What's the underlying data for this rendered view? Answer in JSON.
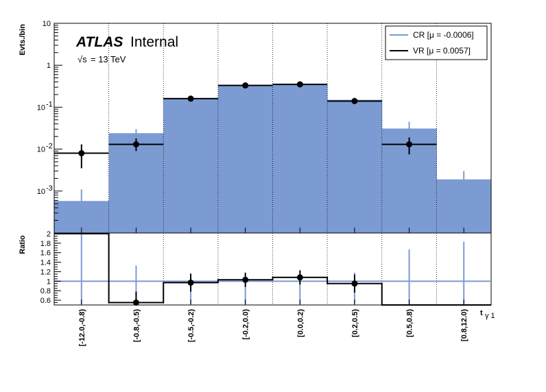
{
  "chart_data": [
    {
      "type": "bar",
      "panel": "main",
      "y_scale": "log",
      "ylim": [
        0.0001,
        10
      ],
      "ylabel": "Evts./bin",
      "y_ticks": [
        {
          "value": 10,
          "label": "10"
        },
        {
          "value": 1,
          "label": "1"
        },
        {
          "value": 0.1,
          "label": "10",
          "exp": "-1"
        },
        {
          "value": 0.01,
          "label": "10",
          "exp": "-2"
        },
        {
          "value": 0.001,
          "label": "10",
          "exp": "-3"
        }
      ],
      "categories": [
        "[-12.0,-0.8)",
        "[-0.8,-0.5)",
        "[-0.5,-0.2)",
        "[-0.2,0.0)",
        "[0.0,0.2)",
        "[0.2,0.5)",
        "[0.5,0.8)",
        "[0.8,12.0)"
      ],
      "xlabel": "t",
      "xlabel_sub": "γ 1",
      "series": [
        {
          "name": "CR [μ = -0.0006]",
          "style": "filled",
          "color": "#7b9bd2",
          "values": [
            0.00058,
            0.024,
            0.16,
            0.33,
            0.34,
            0.15,
            0.031,
            0.0019
          ],
          "err_low": [
            0.00015,
            0.012,
            0.14,
            0.3,
            0.31,
            0.13,
            0.022,
            0.0012
          ],
          "err_high": [
            0.0011,
            0.03,
            0.18,
            0.36,
            0.37,
            0.17,
            0.045,
            0.003
          ]
        },
        {
          "name": "VR [μ = 0.0057]",
          "style": "step-markers",
          "color": "#000000",
          "values": [
            0.008,
            0.013,
            0.16,
            0.33,
            0.35,
            0.14,
            0.013,
            null
          ],
          "err_low": [
            0.0035,
            0.009,
            0.14,
            0.3,
            0.32,
            0.125,
            0.0075,
            null
          ],
          "err_high": [
            0.013,
            0.018,
            0.17,
            0.35,
            0.37,
            0.15,
            0.019,
            null
          ]
        }
      ],
      "annotations": {
        "atlas": "ATLAS",
        "status": "Internal",
        "energy_sqrt": "√s",
        "energy": "= 13 TeV"
      },
      "legend": "top-right"
    },
    {
      "type": "line",
      "panel": "ratio",
      "ylabel": "Ratio",
      "ylim": [
        0.5,
        2.0
      ],
      "y_ticks": [
        "2",
        "1.8",
        "1.6",
        "1.4",
        "1.2",
        "1",
        "0.8",
        "0.6"
      ],
      "reference_line": 1,
      "ratio_values": [
        2.0,
        0.55,
        0.97,
        1.03,
        1.08,
        0.95,
        0.0,
        0.0
      ],
      "ratio_points": [
        null,
        0.55,
        0.97,
        1.03,
        1.08,
        0.95,
        null,
        null
      ],
      "ratio_err_low": [
        null,
        0.5,
        0.78,
        0.88,
        0.93,
        0.76,
        null,
        null
      ],
      "ratio_err_high": [
        null,
        0.78,
        1.16,
        1.18,
        1.23,
        1.14,
        null,
        null
      ],
      "cr_err_high": [
        2.0,
        1.33,
        1.1,
        1.1,
        1.12,
        1.18,
        1.67,
        1.83
      ]
    }
  ]
}
